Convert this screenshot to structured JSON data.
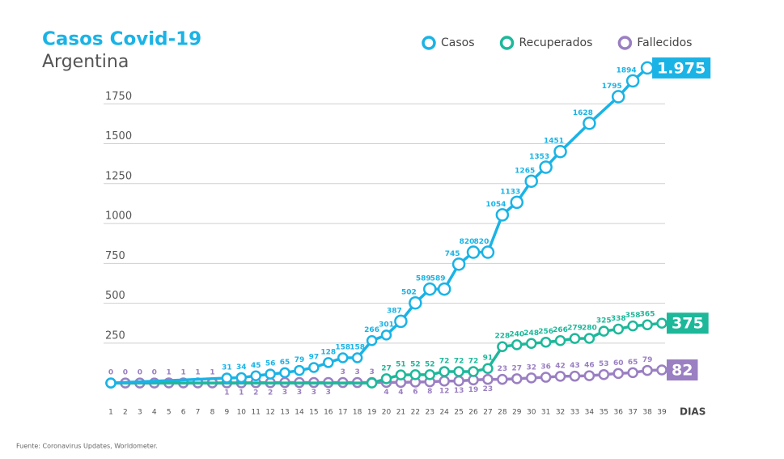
{
  "chart_data": {
    "type": "line",
    "title": "Casos Covid-19",
    "subtitle": "Argentina",
    "x_label": "DIAS",
    "source": "Fuente: Coronavirus Updates, Worldometer.",
    "xlim": [
      1,
      39
    ],
    "xticks": [
      1,
      2,
      3,
      4,
      5,
      6,
      7,
      8,
      9,
      10,
      11,
      12,
      13,
      14,
      15,
      16,
      17,
      18,
      19,
      20,
      21,
      22,
      23,
      24,
      25,
      26,
      27,
      28,
      29,
      30,
      31,
      32,
      33,
      34,
      35,
      36,
      37,
      38,
      39
    ],
    "ylim": [
      -50,
      2000
    ],
    "yticks": [
      250,
      500,
      750,
      1000,
      1250,
      1500,
      1750
    ],
    "grid": true,
    "legend": "top-right",
    "series": [
      {
        "name": "Casos",
        "color": "#1ab3e6",
        "x": [
          1,
          9,
          10,
          11,
          12,
          13,
          14,
          15,
          16,
          17,
          18,
          19,
          20,
          21,
          22,
          23,
          24,
          25,
          26,
          27,
          28,
          29,
          30,
          31,
          32,
          34,
          36,
          37,
          38
        ],
        "values": [
          0,
          31,
          34,
          45,
          56,
          65,
          79,
          97,
          128,
          158,
          158,
          266,
          301,
          387,
          502,
          589,
          589,
          745,
          820,
          820,
          1054,
          1133,
          1265,
          1353,
          1451,
          1628,
          1795,
          1894,
          1975
        ],
        "value_labels": [
          null,
          "31",
          "34",
          "45",
          "56",
          "65",
          "79",
          "97",
          "128",
          "158",
          "158",
          "266",
          "301",
          "387",
          "502",
          "589",
          "589",
          "745",
          "820",
          "820",
          "1054",
          "1133",
          "1265",
          "1353",
          "1451",
          "1628",
          "1795",
          "1894",
          "1.975"
        ]
      },
      {
        "name": "Recuperados",
        "color": "#1db89a",
        "x": [
          1,
          19,
          20,
          21,
          22,
          23,
          24,
          25,
          26,
          27,
          28,
          29,
          30,
          31,
          32,
          33,
          34,
          35,
          36,
          37,
          38,
          39
        ],
        "values": [
          0,
          0,
          27,
          51,
          52,
          52,
          72,
          72,
          72,
          91,
          228,
          240,
          248,
          256,
          266,
          279,
          280,
          325,
          338,
          358,
          365,
          375
        ],
        "value_labels": [
          null,
          null,
          "27",
          "51",
          "52",
          "52",
          "72",
          "72",
          "72",
          "91",
          "228",
          "240",
          "248",
          "256",
          "266",
          "279",
          "280",
          "325",
          "338",
          "358",
          "365",
          "375"
        ]
      },
      {
        "name": "Fallecidos",
        "color": "#9a7fc2",
        "x": [
          1,
          2,
          3,
          4,
          5,
          6,
          7,
          8,
          9,
          10,
          11,
          12,
          13,
          14,
          15,
          16,
          17,
          18,
          19,
          20,
          21,
          22,
          23,
          24,
          25,
          26,
          27,
          28,
          29,
          30,
          31,
          32,
          33,
          34,
          35,
          36,
          37,
          38,
          39
        ],
        "values": [
          0,
          0,
          0,
          0,
          1,
          1,
          1,
          1,
          1,
          1,
          2,
          2,
          3,
          3,
          3,
          3,
          3,
          3,
          3,
          4,
          4,
          6,
          8,
          12,
          13,
          19,
          23,
          23,
          27,
          32,
          36,
          42,
          43,
          46,
          53,
          60,
          65,
          79,
          82
        ],
        "value_labels": [
          "0",
          "0",
          "0",
          "0",
          "1",
          "1",
          "1",
          "1",
          "1",
          "1",
          "2",
          "2",
          "3",
          "3",
          "3",
          "3",
          "3",
          "3",
          "3",
          "4",
          "4",
          "6",
          "8",
          "12",
          "13",
          "19",
          "23",
          "23",
          "27",
          "32",
          "36",
          "42",
          "43",
          "46",
          "53",
          "60",
          "65",
          "79",
          "82"
        ]
      }
    ]
  }
}
